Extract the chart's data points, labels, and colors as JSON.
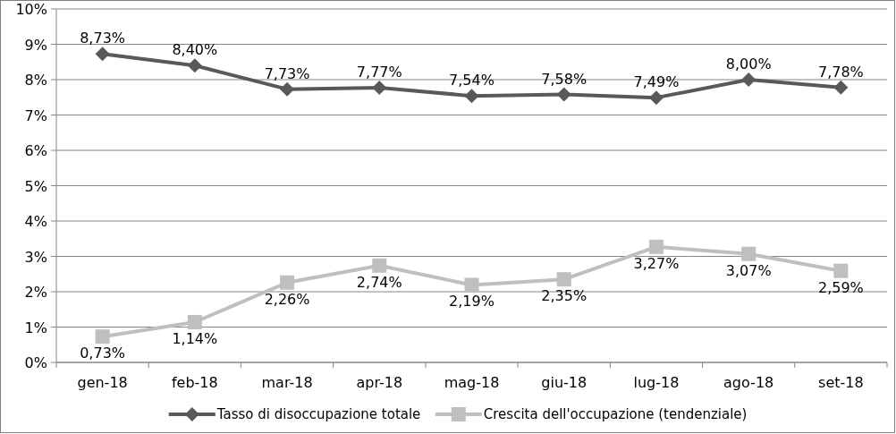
{
  "chart_data": {
    "type": "line",
    "categories": [
      "gen-18",
      "feb-18",
      "mar-18",
      "apr-18",
      "mag-18",
      "giu-18",
      "lug-18",
      "ago-18",
      "set-18"
    ],
    "series": [
      {
        "name": "Tasso di disoccupazione totale",
        "color": "#595959",
        "marker": "diamond",
        "values": [
          8.73,
          8.4,
          7.73,
          7.77,
          7.54,
          7.58,
          7.49,
          8.0,
          7.78
        ],
        "value_labels": [
          "8,73%",
          "8,40%",
          "7,73%",
          "7,77%",
          "7,54%",
          "7,58%",
          "7,49%",
          "8,00%",
          "7,78%"
        ]
      },
      {
        "name": "Crescita dell'occupazione (tendenziale)",
        "color": "#bfbfbf",
        "marker": "square",
        "values": [
          0.73,
          1.14,
          2.26,
          2.74,
          2.19,
          2.35,
          3.27,
          3.07,
          2.59
        ],
        "value_labels": [
          "0,73%",
          "1,14%",
          "2,26%",
          "2,74%",
          "2,19%",
          "2,35%",
          "3,27%",
          "3,07%",
          "2,59%"
        ]
      }
    ],
    "ylim": [
      0,
      10
    ],
    "yticks": [
      {
        "value": 0,
        "label": "0%"
      },
      {
        "value": 1,
        "label": "1%"
      },
      {
        "value": 2,
        "label": "2%"
      },
      {
        "value": 3,
        "label": "3%"
      },
      {
        "value": 4,
        "label": "4%"
      },
      {
        "value": 5,
        "label": "5%"
      },
      {
        "value": 6,
        "label": "6%"
      },
      {
        "value": 7,
        "label": "7%"
      },
      {
        "value": 8,
        "label": "8%"
      },
      {
        "value": 9,
        "label": "9%"
      },
      {
        "value": 10,
        "label": "10%"
      }
    ],
    "grid": "y",
    "legend": "bottom",
    "line_style": "solid"
  }
}
